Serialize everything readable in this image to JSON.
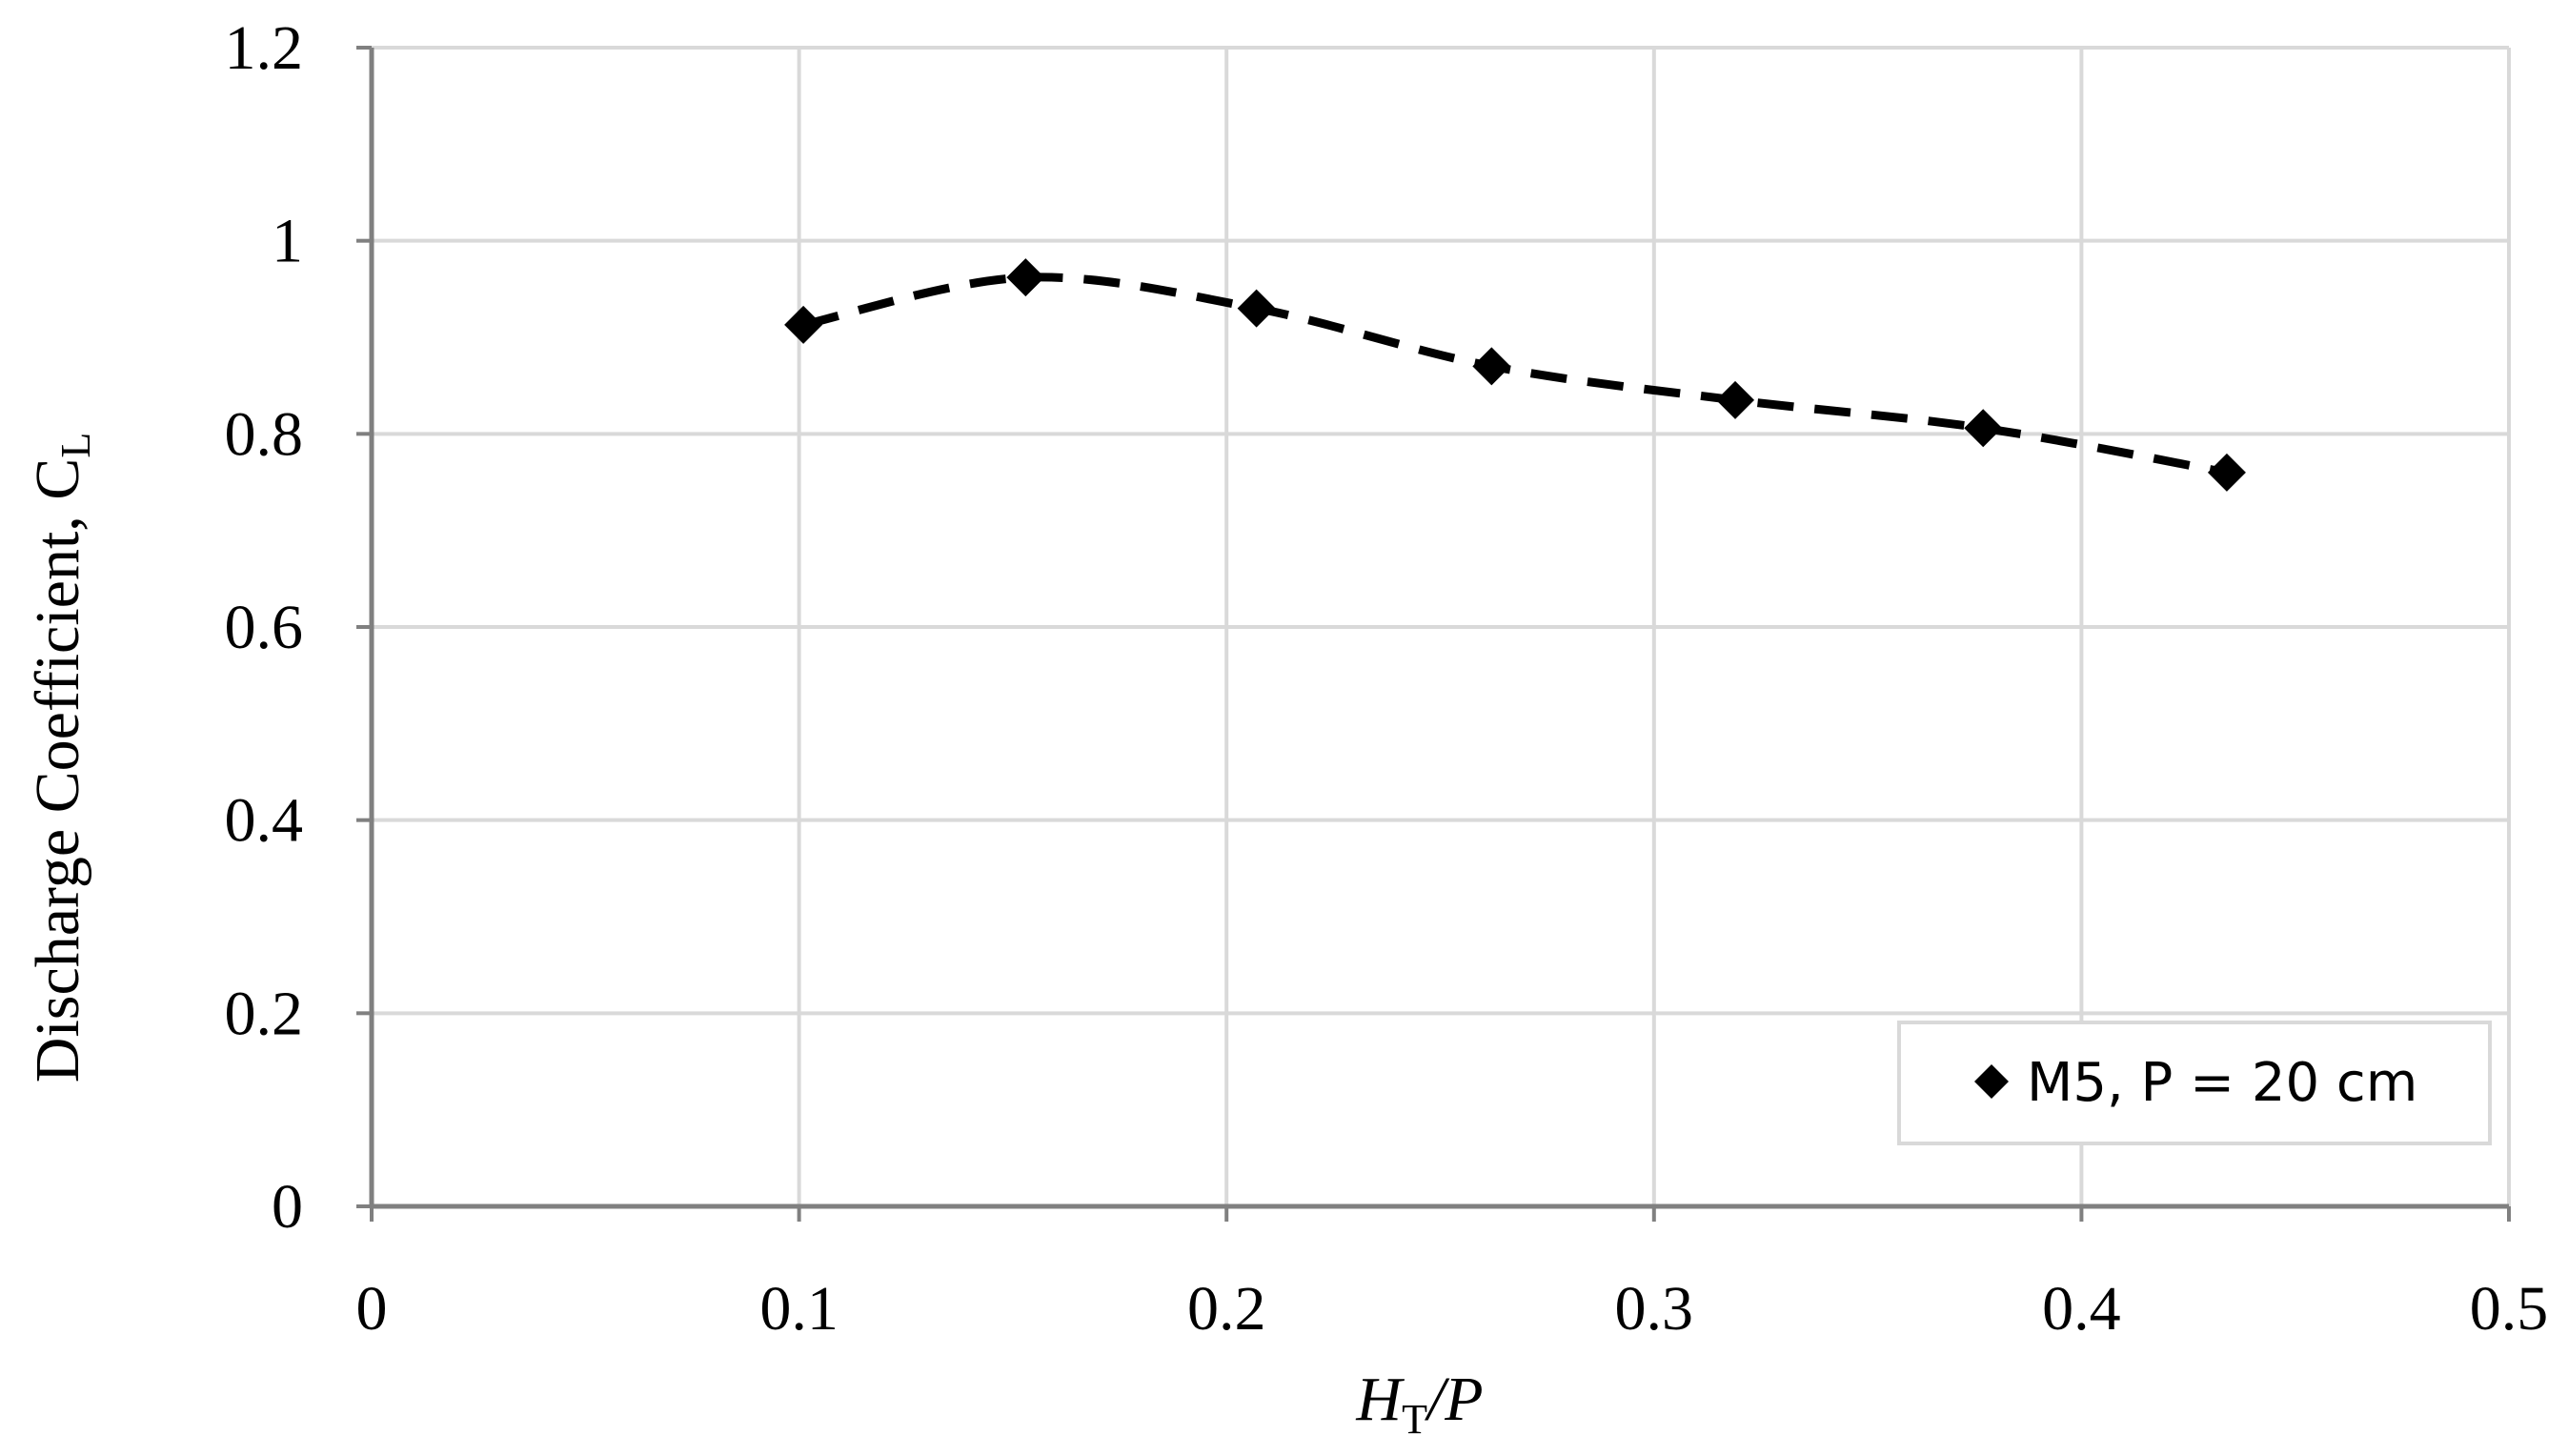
{
  "chart_data": {
    "type": "scatter",
    "title": "",
    "xlabel": {
      "main": "H",
      "sub": "T",
      "suffix": "/P"
    },
    "ylabel": {
      "main": "Discharge Coefficient, C",
      "sub": "L"
    },
    "xlim": [
      0,
      0.5
    ],
    "ylim": [
      0,
      1.2
    ],
    "x_ticks": [
      "0",
      "0.1",
      "0.2",
      "0.3",
      "0.4",
      "0.5"
    ],
    "y_ticks": [
      "0",
      "0.2",
      "0.4",
      "0.6",
      "0.8",
      "1",
      "1.2"
    ],
    "grid": true,
    "legend_position": "bottom-right",
    "series": [
      {
        "name": "M5, P = 20 cm",
        "marker": "diamond",
        "line": "dashed trendline",
        "color": "#000000",
        "x": [
          0.101,
          0.153,
          0.207,
          0.262,
          0.319,
          0.377,
          0.434
        ],
        "y": [
          0.913,
          0.962,
          0.93,
          0.87,
          0.835,
          0.806,
          0.76
        ]
      }
    ]
  },
  "colors": {
    "grid": "#d9d9d9",
    "axis": "#808080",
    "series": "#000000"
  }
}
